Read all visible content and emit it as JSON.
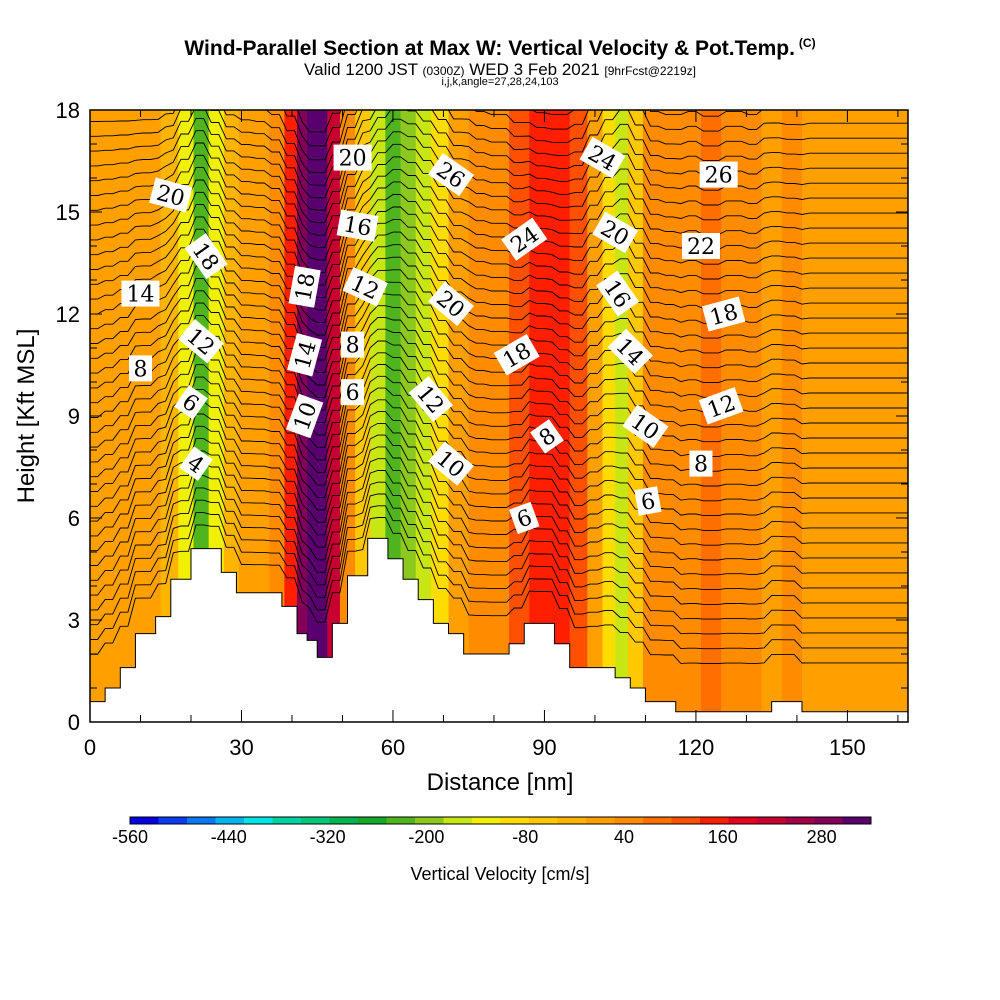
{
  "header": {
    "title": "Wind-Parallel Section at Max W: Vertical Velocity & Pot.Temp.",
    "copyright": "(C)",
    "valid_prefix": "Valid 1200 JST",
    "valid_utc": "(0300Z)",
    "valid_date": "WED 3 Feb 2021",
    "forecast": "[9hrFcst@2219z]",
    "indices": "i,j,k,angle=27,28,24,103"
  },
  "chart_data": {
    "type": "heatmap",
    "xlabel": "Distance [nm]",
    "ylabel": "Height [Kft MSL]",
    "xlim": [
      0,
      162
    ],
    "ylim": [
      0,
      18
    ],
    "x_ticks": [
      "0",
      "30",
      "60",
      "90",
      "120",
      "150"
    ],
    "y_ticks": [
      "0",
      "3",
      "6",
      "9",
      "12",
      "15",
      "18"
    ],
    "colorbar": {
      "label": "Vertical Velocity [cm/s]",
      "range": [
        -560,
        340
      ],
      "tick_labels": [
        "-560",
        "-440",
        "-320",
        "-200",
        "-80",
        "40",
        "160",
        "280"
      ],
      "colors": [
        "#0000e6",
        "#0b3cf0",
        "#0a78f0",
        "#00b4f0",
        "#00e6e6",
        "#00d2a0",
        "#00c878",
        "#00b450",
        "#14aa28",
        "#50b41e",
        "#8cc81e",
        "#c8e614",
        "#f0f000",
        "#ffdc00",
        "#ffc800",
        "#ffb400",
        "#ffa000",
        "#ff8c00",
        "#ff6e00",
        "#ff5000",
        "#ff1e00",
        "#e6001e",
        "#c80032",
        "#a00046",
        "#82005a",
        "#5a006e"
      ]
    },
    "vertical_velocity_columns": [
      {
        "x": 0,
        "w": 10
      },
      {
        "x": 4,
        "w": 10
      },
      {
        "x": 8,
        "w": 10
      },
      {
        "x": 12,
        "w": 5
      },
      {
        "x": 16,
        "w": -30
      },
      {
        "x": 19,
        "w": -140
      },
      {
        "x": 22,
        "w": -230
      },
      {
        "x": 25,
        "w": -120
      },
      {
        "x": 28,
        "w": -20
      },
      {
        "x": 31,
        "w": 10
      },
      {
        "x": 34,
        "w": 20
      },
      {
        "x": 37,
        "w": 60
      },
      {
        "x": 40,
        "w": 160
      },
      {
        "x": 42,
        "w": 280
      },
      {
        "x": 44,
        "w": 340
      },
      {
        "x": 46,
        "w": 340
      },
      {
        "x": 48,
        "w": 230
      },
      {
        "x": 51,
        "w": 60
      },
      {
        "x": 54,
        "w": -60
      },
      {
        "x": 57,
        "w": -150
      },
      {
        "x": 60,
        "w": -230
      },
      {
        "x": 63,
        "w": -210
      },
      {
        "x": 66,
        "w": -150
      },
      {
        "x": 69,
        "w": -80
      },
      {
        "x": 73,
        "w": 0
      },
      {
        "x": 77,
        "w": 40
      },
      {
        "x": 81,
        "w": 60
      },
      {
        "x": 85,
        "w": 110
      },
      {
        "x": 89,
        "w": 140
      },
      {
        "x": 93,
        "w": 150
      },
      {
        "x": 97,
        "w": 120
      },
      {
        "x": 100,
        "w": 10
      },
      {
        "x": 103,
        "w": -90
      },
      {
        "x": 105,
        "w": -160
      },
      {
        "x": 108,
        "w": -60
      },
      {
        "x": 111,
        "w": 40
      },
      {
        "x": 115,
        "w": 60
      },
      {
        "x": 119,
        "w": 40
      },
      {
        "x": 123,
        "w": 70
      },
      {
        "x": 127,
        "w": 40
      },
      {
        "x": 131,
        "w": 60
      },
      {
        "x": 135,
        "w": 20
      },
      {
        "x": 139,
        "w": 30
      },
      {
        "x": 143,
        "w": 20
      },
      {
        "x": 148,
        "w": 20
      },
      {
        "x": 153,
        "w": 20
      },
      {
        "x": 158,
        "w": 20
      },
      {
        "x": 162,
        "w": 20
      }
    ],
    "terrain_height": [
      {
        "x": 0,
        "h": 0.6
      },
      {
        "x": 3,
        "h": 0.6
      },
      {
        "x": 3,
        "h": 1.0
      },
      {
        "x": 6,
        "h": 1.0
      },
      {
        "x": 6,
        "h": 1.6
      },
      {
        "x": 9,
        "h": 1.6
      },
      {
        "x": 9,
        "h": 2.6
      },
      {
        "x": 13,
        "h": 2.6
      },
      {
        "x": 13,
        "h": 3.1
      },
      {
        "x": 16,
        "h": 3.1
      },
      {
        "x": 16,
        "h": 4.2
      },
      {
        "x": 20,
        "h": 4.2
      },
      {
        "x": 20,
        "h": 5.1
      },
      {
        "x": 26,
        "h": 5.1
      },
      {
        "x": 26,
        "h": 4.4
      },
      {
        "x": 29,
        "h": 4.4
      },
      {
        "x": 29,
        "h": 3.8
      },
      {
        "x": 38,
        "h": 3.8
      },
      {
        "x": 38,
        "h": 3.4
      },
      {
        "x": 41,
        "h": 3.4
      },
      {
        "x": 41,
        "h": 2.6
      },
      {
        "x": 43,
        "h": 2.6
      },
      {
        "x": 43,
        "h": 2.4
      },
      {
        "x": 45,
        "h": 2.4
      },
      {
        "x": 45,
        "h": 1.9
      },
      {
        "x": 48,
        "h": 1.9
      },
      {
        "x": 48,
        "h": 2.9
      },
      {
        "x": 51,
        "h": 2.9
      },
      {
        "x": 51,
        "h": 4.3
      },
      {
        "x": 55,
        "h": 4.3
      },
      {
        "x": 55,
        "h": 5.4
      },
      {
        "x": 59,
        "h": 5.4
      },
      {
        "x": 59,
        "h": 4.8
      },
      {
        "x": 62,
        "h": 4.8
      },
      {
        "x": 62,
        "h": 4.2
      },
      {
        "x": 65,
        "h": 4.2
      },
      {
        "x": 65,
        "h": 3.6
      },
      {
        "x": 68,
        "h": 3.6
      },
      {
        "x": 68,
        "h": 2.9
      },
      {
        "x": 71,
        "h": 2.9
      },
      {
        "x": 71,
        "h": 2.6
      },
      {
        "x": 74,
        "h": 2.6
      },
      {
        "x": 74,
        "h": 2.0
      },
      {
        "x": 83,
        "h": 2.0
      },
      {
        "x": 83,
        "h": 2.3
      },
      {
        "x": 86,
        "h": 2.3
      },
      {
        "x": 86,
        "h": 2.9
      },
      {
        "x": 92,
        "h": 2.9
      },
      {
        "x": 92,
        "h": 2.3
      },
      {
        "x": 95,
        "h": 2.3
      },
      {
        "x": 95,
        "h": 1.6
      },
      {
        "x": 104,
        "h": 1.6
      },
      {
        "x": 104,
        "h": 1.3
      },
      {
        "x": 107,
        "h": 1.3
      },
      {
        "x": 107,
        "h": 1.0
      },
      {
        "x": 110,
        "h": 1.0
      },
      {
        "x": 110,
        "h": 0.6
      },
      {
        "x": 116,
        "h": 0.6
      },
      {
        "x": 116,
        "h": 0.3
      },
      {
        "x": 135,
        "h": 0.3
      },
      {
        "x": 135,
        "h": 0.6
      },
      {
        "x": 141,
        "h": 0.6
      },
      {
        "x": 141,
        "h": 0.3
      },
      {
        "x": 162,
        "h": 0.3
      }
    ],
    "contour_labels": [
      {
        "text": "20",
        "x": 16,
        "y": 15.5,
        "angle": 15
      },
      {
        "text": "14",
        "x": 10,
        "y": 12.6,
        "angle": 0
      },
      {
        "text": "8",
        "x": 10,
        "y": 10.4,
        "angle": 0
      },
      {
        "text": "18",
        "x": 23,
        "y": 13.7,
        "angle": 55
      },
      {
        "text": "12",
        "x": 22,
        "y": 11.2,
        "angle": 40
      },
      {
        "text": "6",
        "x": 20,
        "y": 9.4,
        "angle": 35
      },
      {
        "text": "4",
        "x": 21,
        "y": 7.6,
        "angle": 35
      },
      {
        "text": "18",
        "x": 42.5,
        "y": 12.8,
        "angle": -80
      },
      {
        "text": "14",
        "x": 42.5,
        "y": 10.8,
        "angle": -75
      },
      {
        "text": "10",
        "x": 42.5,
        "y": 9.0,
        "angle": -70
      },
      {
        "text": "20",
        "x": 52,
        "y": 16.6,
        "angle": 0
      },
      {
        "text": "16",
        "x": 53,
        "y": 14.6,
        "angle": 10
      },
      {
        "text": "12",
        "x": 54.5,
        "y": 12.8,
        "angle": 25
      },
      {
        "text": "8",
        "x": 52,
        "y": 11.1,
        "angle": 0
      },
      {
        "text": "6",
        "x": 52,
        "y": 9.7,
        "angle": 0
      },
      {
        "text": "26",
        "x": 71.5,
        "y": 16.1,
        "angle": 35
      },
      {
        "text": "20",
        "x": 71.5,
        "y": 12.3,
        "angle": 40
      },
      {
        "text": "12",
        "x": 67.5,
        "y": 9.5,
        "angle": 50
      },
      {
        "text": "10",
        "x": 71.5,
        "y": 7.6,
        "angle": 40
      },
      {
        "text": "24",
        "x": 86,
        "y": 14.2,
        "angle": -35
      },
      {
        "text": "18",
        "x": 84.5,
        "y": 10.8,
        "angle": -30
      },
      {
        "text": "8",
        "x": 90.5,
        "y": 8.4,
        "angle": -35
      },
      {
        "text": "6",
        "x": 86,
        "y": 6.0,
        "angle": -20
      },
      {
        "text": "24",
        "x": 101.5,
        "y": 16.6,
        "angle": 30
      },
      {
        "text": "20",
        "x": 104,
        "y": 14.4,
        "angle": 30
      },
      {
        "text": "16",
        "x": 104.5,
        "y": 12.6,
        "angle": 55
      },
      {
        "text": "14",
        "x": 107,
        "y": 10.9,
        "angle": 45
      },
      {
        "text": "10",
        "x": 110,
        "y": 8.7,
        "angle": 35
      },
      {
        "text": "6",
        "x": 110.5,
        "y": 6.5,
        "angle": -10
      },
      {
        "text": "26",
        "x": 124.5,
        "y": 16.1,
        "angle": 0
      },
      {
        "text": "22",
        "x": 121,
        "y": 14.0,
        "angle": 0
      },
      {
        "text": "18",
        "x": 125.5,
        "y": 12.0,
        "angle": -15
      },
      {
        "text": "12",
        "x": 125,
        "y": 9.3,
        "angle": -20
      },
      {
        "text": "8",
        "x": 121,
        "y": 7.6,
        "angle": 0
      }
    ]
  }
}
